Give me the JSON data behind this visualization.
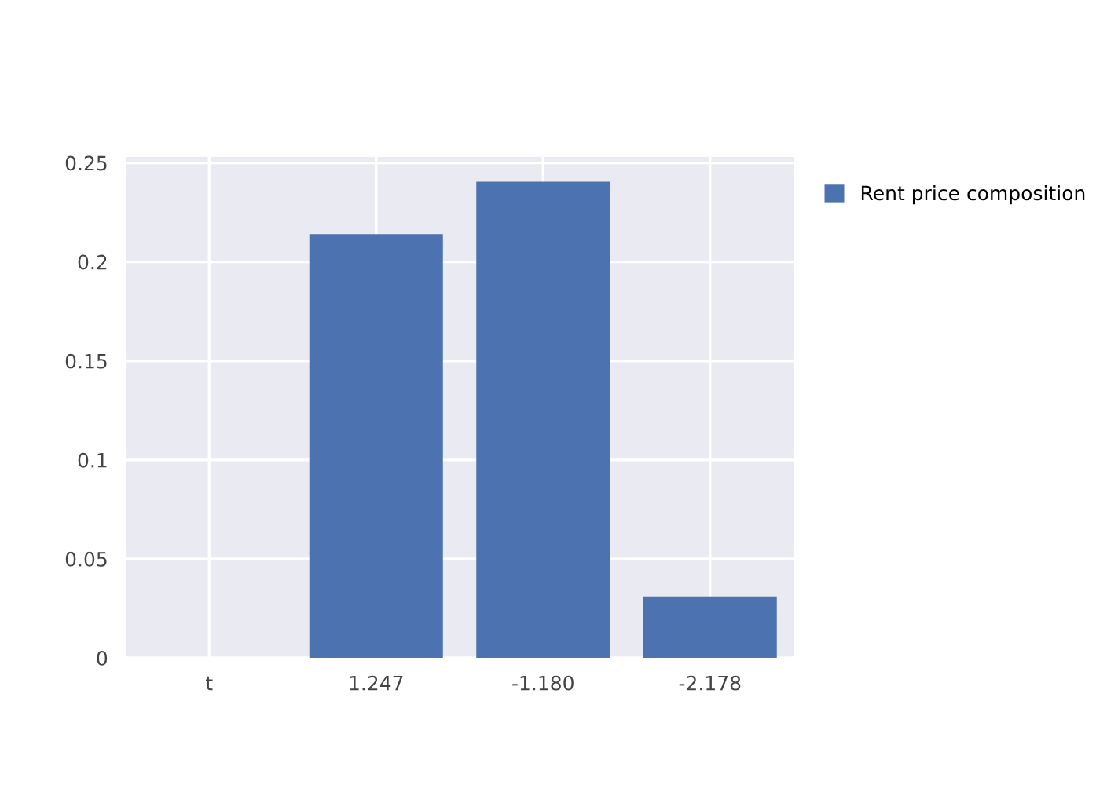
{
  "chart_data": {
    "type": "bar",
    "categories": [
      "t",
      "1.247",
      "-1.180",
      "-2.178"
    ],
    "series": [
      {
        "name": "Rent price composition",
        "color": "#4c72b0",
        "values": [
          0,
          0.214,
          0.2405,
          0.031
        ]
      }
    ],
    "ylim": [
      0,
      0.253
    ],
    "yticks": [
      0,
      0.05,
      0.1,
      0.15,
      0.2,
      0.25
    ],
    "grid": true,
    "legend": "top right"
  }
}
